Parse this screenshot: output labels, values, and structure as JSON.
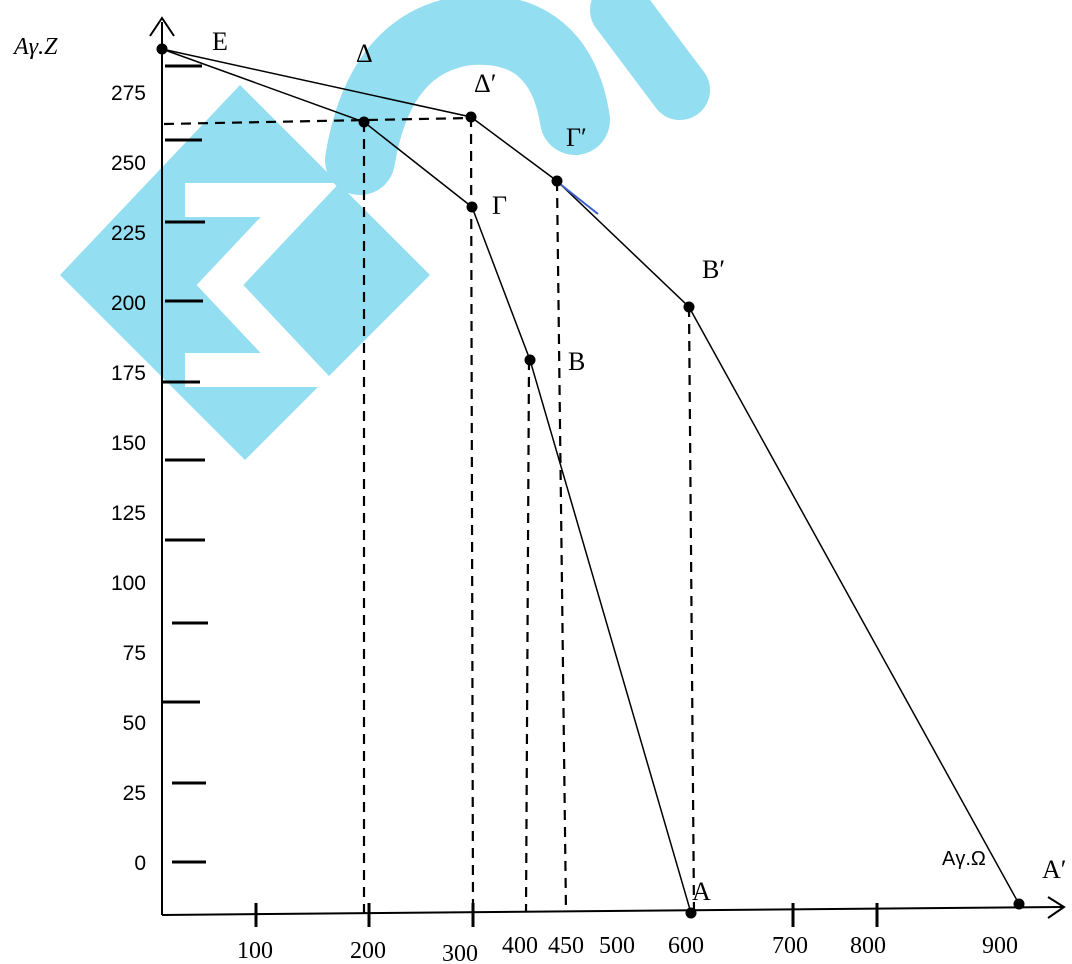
{
  "chart_data": {
    "type": "line",
    "title": "",
    "ylabel": "Aγ.Z",
    "xlabel_end": "Aγ.Ω",
    "y_ticks": [
      "275",
      "250",
      "225",
      "200",
      "175",
      "150",
      "125",
      "100",
      "75",
      "50",
      "25",
      "0"
    ],
    "x_ticks": [
      "100",
      "200",
      "300",
      "400",
      "450",
      "500",
      "600",
      "700",
      "800",
      "900"
    ],
    "series": [
      {
        "points": [
          {
            "label": "E",
            "x": 0,
            "y": 300
          },
          {
            "label": "Δ",
            "x": 200,
            "y": 275
          },
          {
            "label": "Γ",
            "x": 300,
            "y": 250
          },
          {
            "label": "B",
            "x": 400,
            "y": 200
          },
          {
            "label": "A",
            "x": 600,
            "y": 0
          }
        ]
      },
      {
        "points": [
          {
            "label": "E",
            "x": 0,
            "y": 300
          },
          {
            "label": "Δ′",
            "x": 300,
            "y": 275
          },
          {
            "label": "Γ′",
            "x": 450,
            "y": 250
          },
          {
            "label": "B′",
            "x": 600,
            "y": 200
          },
          {
            "label": "A′",
            "x": 900,
            "y": 0
          }
        ]
      }
    ],
    "grid": false
  }
}
